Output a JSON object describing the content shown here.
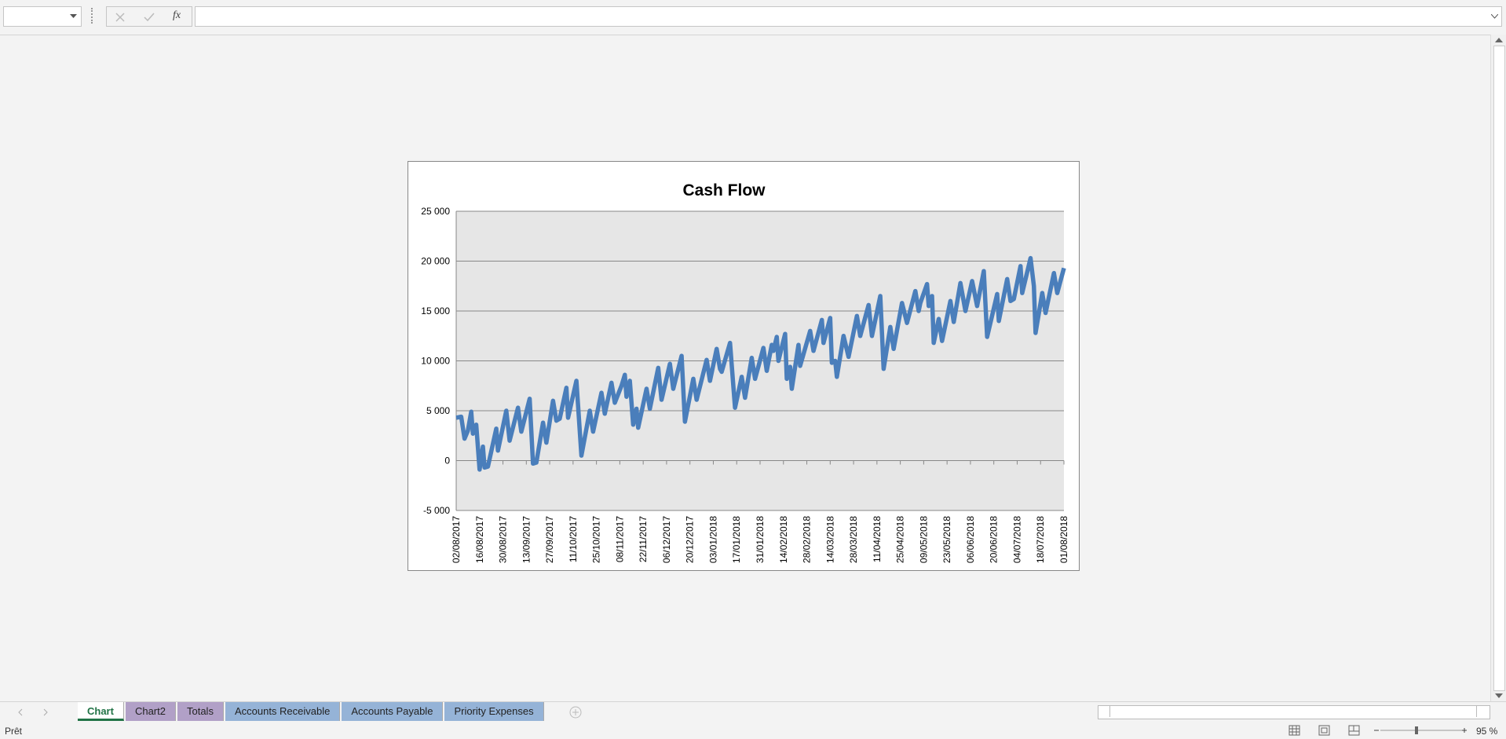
{
  "formula_bar": {
    "function_icon": "fx"
  },
  "chart_data": {
    "type": "line",
    "title": "Cash Flow",
    "x": [
      "02/08/2017",
      "05/08/2017",
      "07/08/2017",
      "09/08/2017",
      "11/08/2017",
      "12/08/2017",
      "14/08/2017",
      "16/08/2017",
      "18/08/2017",
      "19/08/2017",
      "21/08/2017",
      "26/08/2017",
      "27/08/2017",
      "01/09/2017",
      "03/09/2017",
      "08/09/2017",
      "10/09/2017",
      "15/09/2017",
      "17/09/2017",
      "19/09/2017",
      "23/09/2017",
      "25/09/2017",
      "29/09/2017",
      "01/10/2017",
      "03/10/2017",
      "07/10/2017",
      "08/10/2017",
      "13/10/2017",
      "16/10/2017",
      "21/10/2017",
      "23/10/2017",
      "28/10/2017",
      "30/10/2017",
      "03/11/2017",
      "05/11/2017",
      "09/11/2017",
      "11/11/2017",
      "12/11/2017",
      "14/11/2017",
      "16/11/2017",
      "18/11/2017",
      "19/11/2017",
      "24/11/2017",
      "26/11/2017",
      "01/12/2017",
      "03/12/2017",
      "08/12/2017",
      "10/12/2017",
      "15/12/2017",
      "17/12/2017",
      "22/12/2017",
      "24/12/2017",
      "30/12/2017",
      "01/01/2018",
      "05/01/2018",
      "07/01/2018",
      "08/01/2018",
      "13/01/2018",
      "16/01/2018",
      "20/01/2018",
      "22/01/2018",
      "26/01/2018",
      "28/01/2018",
      "02/02/2018",
      "04/02/2018",
      "07/02/2018",
      "08/02/2018",
      "10/02/2018",
      "11/02/2018",
      "15/02/2018",
      "16/02/2018",
      "18/02/2018",
      "19/02/2018",
      "23/02/2018",
      "24/02/2018",
      "02/03/2018",
      "04/03/2018",
      "09/03/2018",
      "10/03/2018",
      "14/03/2018",
      "15/03/2018",
      "17/03/2018",
      "18/03/2018",
      "22/03/2018",
      "25/03/2018",
      "30/03/2018",
      "01/04/2018",
      "06/04/2018",
      "08/04/2018",
      "13/04/2018",
      "15/04/2018",
      "19/04/2018",
      "21/04/2018",
      "26/04/2018",
      "29/04/2018",
      "04/05/2018",
      "06/05/2018",
      "07/05/2018",
      "11/05/2018",
      "12/05/2018",
      "14/05/2018",
      "15/05/2018",
      "18/05/2018",
      "20/05/2018",
      "25/05/2018",
      "27/05/2018",
      "31/05/2018",
      "03/06/2018",
      "07/06/2018",
      "10/06/2018",
      "14/06/2018",
      "16/06/2018",
      "22/06/2018",
      "23/06/2018",
      "28/06/2018",
      "30/06/2018",
      "02/07/2018",
      "06/07/2018",
      "07/07/2018",
      "12/07/2018",
      "14/07/2018",
      "15/07/2018",
      "19/07/2018",
      "21/07/2018",
      "26/07/2018",
      "28/07/2018",
      "01/08/2018"
    ],
    "series": [
      {
        "color": "#4a7ebb",
        "values": [
          4300,
          4400,
          2200,
          3000,
          4900,
          2700,
          3600,
          -900,
          1400,
          -700,
          -600,
          3200,
          1000,
          5000,
          2000,
          5300,
          2900,
          6200,
          -300,
          -200,
          3800,
          1800,
          6000,
          4000,
          4200,
          7300,
          4300,
          8000,
          500,
          5000,
          2900,
          6800,
          4700,
          7800,
          5800,
          7500,
          8600,
          6400,
          8000,
          3600,
          5200,
          3300,
          7200,
          5200,
          9300,
          6100,
          9700,
          7200,
          10500,
          3900,
          8200,
          6100,
          10100,
          8000,
          11200,
          9200,
          8900,
          11800,
          5300,
          8400,
          6300,
          10300,
          8200,
          11300,
          9000,
          11600,
          11000,
          12400,
          10000,
          12700,
          8200,
          9400,
          7200,
          11600,
          9500,
          13000,
          11000,
          14100,
          11800,
          14300,
          9800,
          10000,
          8400,
          12500,
          10400,
          14500,
          12500,
          15600,
          12500,
          16500,
          9200,
          13400,
          11200,
          15800,
          13800,
          17000,
          15000,
          15800,
          17700,
          15500,
          16500,
          11800,
          14200,
          12000,
          16000,
          13900,
          17800,
          15000,
          18000,
          15500,
          19000,
          12400,
          16700,
          14000,
          18200,
          16000,
          16200,
          19500,
          16800,
          20300,
          17500,
          12800,
          16800,
          14800,
          18800,
          16800,
          19300
        ]
      }
    ],
    "xlim": [
      "02/08/2017",
      "01/08/2018"
    ],
    "xticks": [
      "02/08/2017",
      "16/08/2017",
      "30/08/2017",
      "13/09/2017",
      "27/09/2017",
      "11/10/2017",
      "25/10/2017",
      "08/11/2017",
      "22/11/2017",
      "06/12/2017",
      "20/12/2017",
      "03/01/2018",
      "17/01/2018",
      "31/01/2018",
      "14/02/2018",
      "28/02/2018",
      "14/03/2018",
      "28/03/2018",
      "11/04/2018",
      "25/04/2018",
      "09/05/2018",
      "23/05/2018",
      "06/06/2018",
      "20/06/2018",
      "04/07/2018",
      "18/07/2018",
      "01/08/2018"
    ],
    "ylim": [
      -5000,
      25000
    ],
    "yticks": [
      {
        "value": -5000,
        "label": "-5 000"
      },
      0,
      {
        "value": 5000,
        "label": "5 000"
      },
      {
        "value": 10000,
        "label": "10 000"
      },
      {
        "value": 15000,
        "label": "15 000"
      },
      {
        "value": 20000,
        "label": "20 000"
      },
      {
        "value": 25000,
        "label": "25 000"
      }
    ],
    "grid": true
  },
  "sheet_tabs": [
    {
      "name": "Chart",
      "color": "#ffffff"
    },
    {
      "name": "Chart2",
      "color": "#b1a0c7"
    },
    {
      "name": "Totals",
      "color": "#b1a0c7"
    },
    {
      "name": "Accounts Receivable",
      "color": "#95b3d7"
    },
    {
      "name": "Accounts Payable",
      "color": "#95b3d7"
    },
    {
      "name": "Priority Expenses",
      "color": "#95b3d7"
    }
  ],
  "status_bar": {
    "status": "Prêt",
    "zoom": "95 %"
  }
}
